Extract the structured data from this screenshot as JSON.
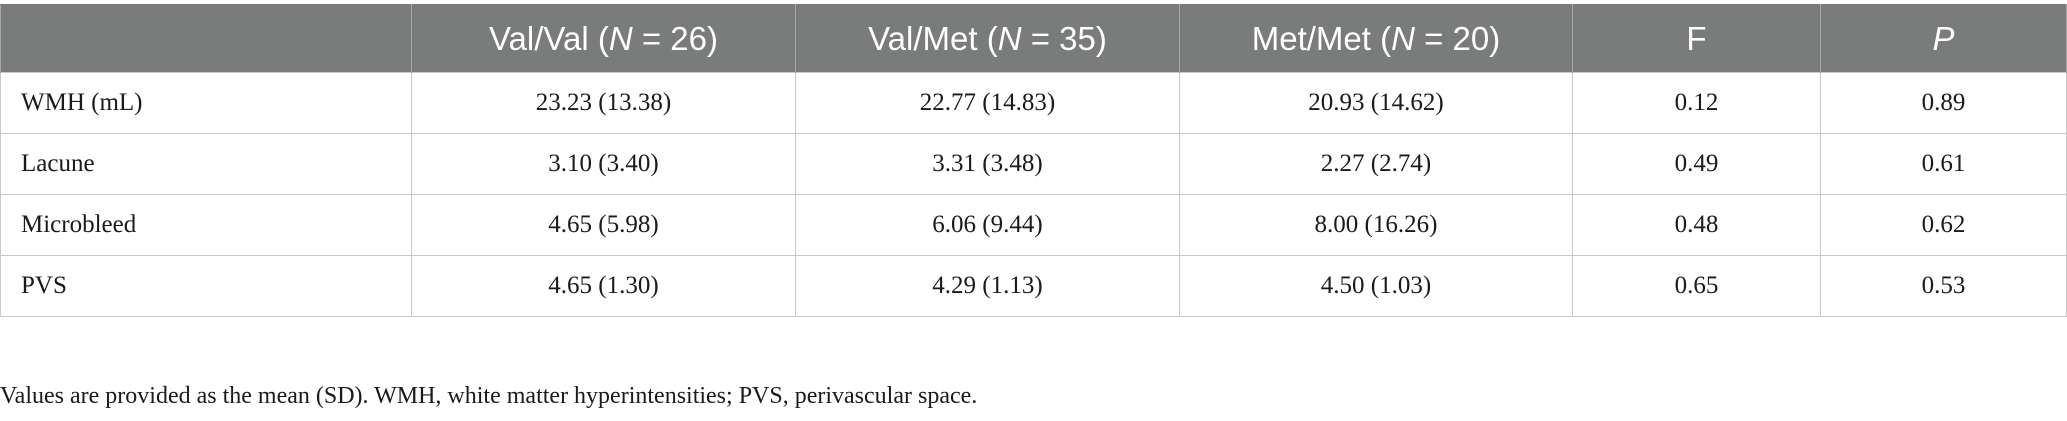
{
  "table": {
    "headers": [
      {
        "pre": "",
        "italic": "",
        "post": ""
      },
      {
        "pre": "Val/Val (",
        "italic": "N",
        "post": " = 26)"
      },
      {
        "pre": "Val/Met (",
        "italic": "N",
        "post": " = 35)"
      },
      {
        "pre": "Met/Met (",
        "italic": "N",
        "post": " = 20)"
      },
      {
        "pre": "F",
        "italic": "",
        "post": ""
      },
      {
        "pre": "",
        "italic": "P",
        "post": ""
      }
    ],
    "rows": [
      [
        "WMH (mL)",
        "23.23 (13.38)",
        "22.77 (14.83)",
        "20.93 (14.62)",
        "0.12",
        "0.89"
      ],
      [
        "Lacune",
        "3.10 (3.40)",
        "3.31 (3.48)",
        "2.27 (2.74)",
        "0.49",
        "0.61"
      ],
      [
        "Microbleed",
        "4.65 (5.98)",
        "6.06 (9.44)",
        "8.00 (16.26)",
        "0.48",
        "0.62"
      ],
      [
        "PVS",
        "4.65 (1.30)",
        "4.29 (1.13)",
        "4.50 (1.03)",
        "0.65",
        "0.53"
      ]
    ]
  },
  "footnote": "Values are provided as the mean (SD). WMH, white matter hyperintensities; PVS, perivascular space."
}
